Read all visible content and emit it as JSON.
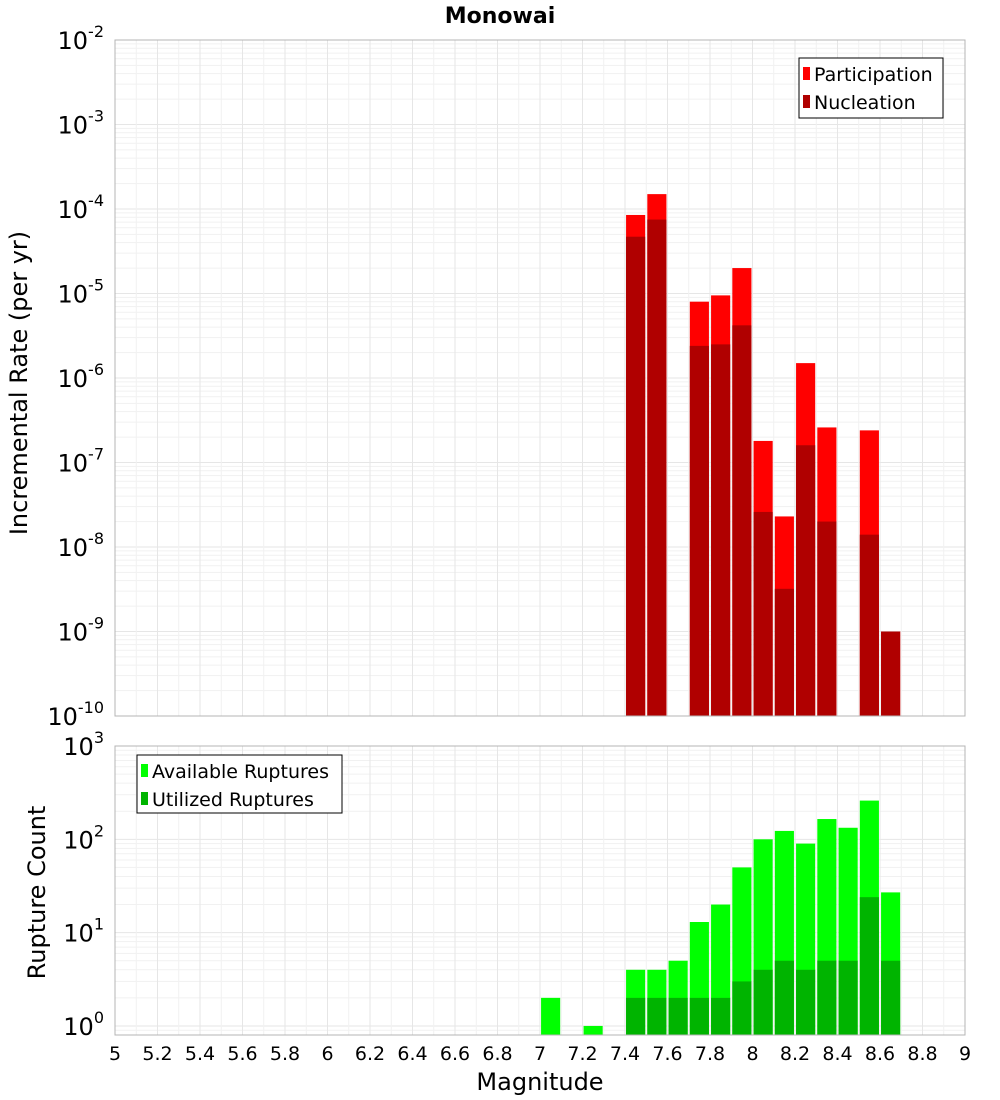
{
  "chart_data": [
    {
      "type": "bar",
      "panel": "top",
      "title": "Monowai",
      "ylabel": "Incremental Rate (per yr)",
      "yscale": "log",
      "ylim": [
        1e-10,
        0.01
      ],
      "xlim": [
        5,
        9
      ],
      "grid": true,
      "legend_position": "top-right",
      "legend": [
        "Participation",
        "Nucleation"
      ],
      "series": [
        {
          "name": "Participation",
          "color": "#ff0000",
          "x": [
            7.45,
            7.55,
            7.75,
            7.85,
            7.95,
            8.05,
            8.15,
            8.25,
            8.35,
            8.45,
            8.55,
            8.65
          ],
          "values": [
            8.5e-05,
            0.00015,
            8e-06,
            9.5e-06,
            2e-05,
            1.8e-07,
            2.3e-08,
            1.5e-06,
            2.6e-07,
            1e-10,
            2.4e-07,
            1e-09
          ]
        },
        {
          "name": "Nucleation",
          "color": "#b00000",
          "x": [
            7.45,
            7.55,
            7.75,
            7.85,
            7.95,
            8.05,
            8.15,
            8.25,
            8.35,
            8.45,
            8.55,
            8.65
          ],
          "values": [
            4.7e-05,
            7.5e-05,
            2.4e-06,
            2.5e-06,
            4.2e-06,
            2.6e-08,
            3.2e-09,
            1.6e-07,
            2e-08,
            1e-10,
            1.4e-08,
            1e-09
          ]
        }
      ],
      "y_ticks": [
        {
          "base": "10",
          "exp": "-2"
        },
        {
          "base": "10",
          "exp": "-3"
        },
        {
          "base": "10",
          "exp": "-4"
        },
        {
          "base": "10",
          "exp": "-5"
        },
        {
          "base": "10",
          "exp": "-6"
        },
        {
          "base": "10",
          "exp": "-7"
        },
        {
          "base": "10",
          "exp": "-8"
        },
        {
          "base": "10",
          "exp": "-9"
        },
        {
          "base": "10",
          "exp": "-10"
        }
      ]
    },
    {
      "type": "bar",
      "panel": "bottom",
      "xlabel": "Magnitude",
      "ylabel": "Rupture Count",
      "yscale": "log",
      "ylim": [
        0.8,
        1000
      ],
      "xlim": [
        5,
        9
      ],
      "grid": true,
      "legend_position": "top-left",
      "legend": [
        "Available Ruptures",
        "Utilized Ruptures"
      ],
      "series": [
        {
          "name": "Available Ruptures",
          "color": "#00ff00",
          "x": [
            7.05,
            7.25,
            7.45,
            7.55,
            7.65,
            7.75,
            7.85,
            7.95,
            8.05,
            8.15,
            8.25,
            8.35,
            8.45,
            8.55,
            8.65
          ],
          "values": [
            2,
            1,
            4,
            4,
            5,
            13,
            20,
            50,
            100,
            123,
            90,
            165,
            133,
            260,
            27
          ]
        },
        {
          "name": "Utilized Ruptures",
          "color": "#00b400",
          "x": [
            7.45,
            7.55,
            7.65,
            7.75,
            7.85,
            7.95,
            8.05,
            8.15,
            8.25,
            8.35,
            8.45,
            8.55,
            8.65
          ],
          "values": [
            2,
            2,
            2,
            2,
            2,
            3,
            4,
            5,
            4,
            5,
            5,
            24,
            5
          ]
        }
      ],
      "x_ticks": [
        "5",
        "5.2",
        "5.4",
        "5.6",
        "5.8",
        "6",
        "6.2",
        "6.4",
        "6.6",
        "6.8",
        "7",
        "7.2",
        "7.4",
        "7.6",
        "7.8",
        "8",
        "8.2",
        "8.4",
        "8.6",
        "8.8",
        "9"
      ],
      "y_ticks": [
        {
          "base": "10",
          "exp": "3"
        },
        {
          "base": "10",
          "exp": "2"
        },
        {
          "base": "10",
          "exp": "1"
        },
        {
          "base": "10",
          "exp": "0"
        }
      ]
    }
  ]
}
